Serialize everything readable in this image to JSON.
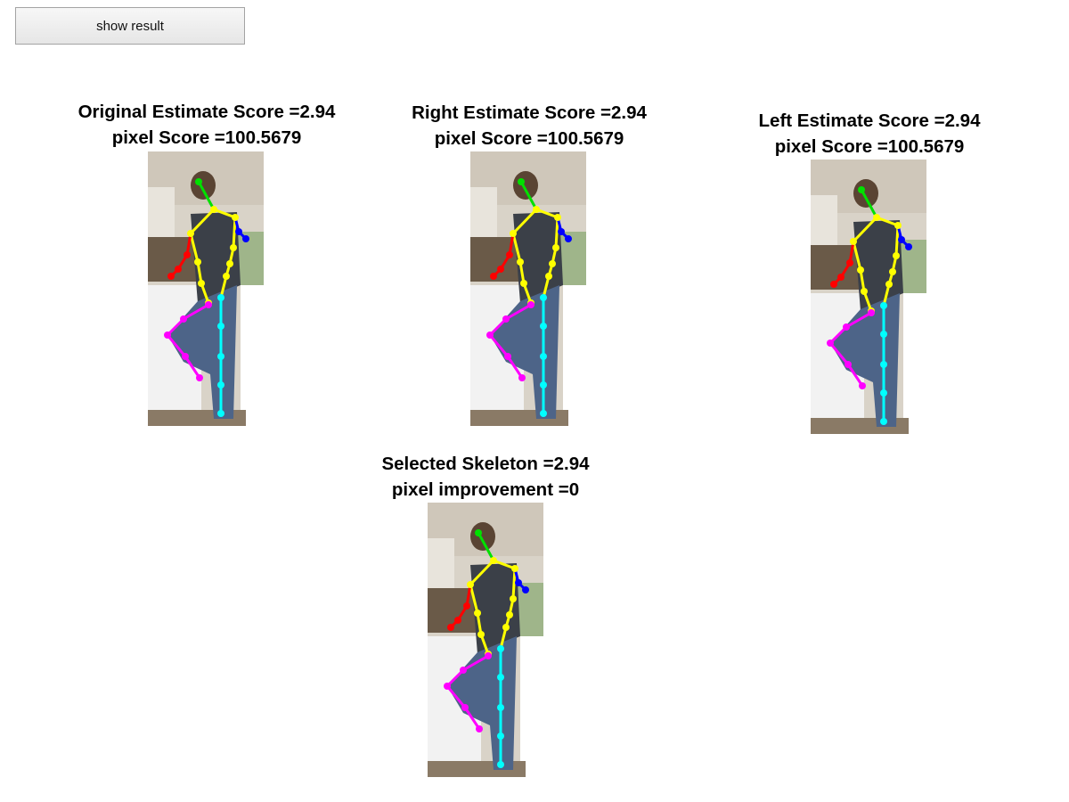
{
  "toolbar": {
    "show_result_label": "show result"
  },
  "panels": {
    "original": {
      "title": "Original Estimate Score =2.94",
      "subtitle": "pixel Score =100.5679"
    },
    "right": {
      "title": "Right Estimate Score =2.94",
      "subtitle": "pixel Score =100.5679"
    },
    "left": {
      "title": "Left Estimate Score =2.94",
      "subtitle": "pixel Score =100.5679"
    },
    "selected": {
      "title": "Selected Skeleton =2.94",
      "subtitle": "pixel improvement =0"
    }
  },
  "skeleton_colors": {
    "head": "#00e000",
    "torso": "#ffff00",
    "right_arm": "#ff0000",
    "left_arm": "#0000ff",
    "right_leg": "#ff00ff",
    "left_leg": "#00ffff"
  }
}
